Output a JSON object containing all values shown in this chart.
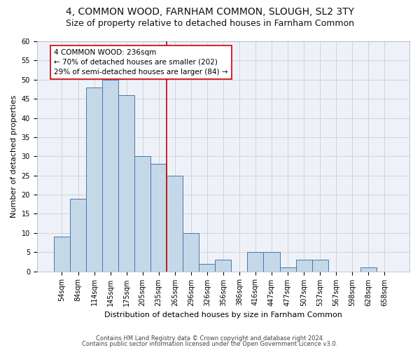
{
  "title": "4, COMMON WOOD, FARNHAM COMMON, SLOUGH, SL2 3TY",
  "subtitle": "Size of property relative to detached houses in Farnham Common",
  "xlabel": "Distribution of detached houses by size in Farnham Common",
  "ylabel": "Number of detached properties",
  "bin_labels": [
    "54sqm",
    "84sqm",
    "114sqm",
    "145sqm",
    "175sqm",
    "205sqm",
    "235sqm",
    "265sqm",
    "296sqm",
    "326sqm",
    "356sqm",
    "386sqm",
    "416sqm",
    "447sqm",
    "477sqm",
    "507sqm",
    "537sqm",
    "567sqm",
    "598sqm",
    "628sqm",
    "658sqm"
  ],
  "bar_values": [
    9,
    19,
    48,
    50,
    46,
    30,
    28,
    25,
    10,
    2,
    3,
    0,
    5,
    5,
    1,
    3,
    3,
    0,
    0,
    1,
    0
  ],
  "bar_color": "#c5d8e8",
  "bar_edge_color": "#4477aa",
  "annotation_text": "4 COMMON WOOD: 236sqm\n← 70% of detached houses are smaller (202)\n29% of semi-detached houses are larger (84) →",
  "annotation_box_color": "#ffffff",
  "annotation_box_edge": "#cc0000",
  "line_color": "#cc0000",
  "ylim": [
    0,
    60
  ],
  "yticks": [
    0,
    5,
    10,
    15,
    20,
    25,
    30,
    35,
    40,
    45,
    50,
    55,
    60
  ],
  "footer1": "Contains HM Land Registry data © Crown copyright and database right 2024.",
  "footer2": "Contains public sector information licensed under the Open Government Licence v3.0.",
  "bg_color": "#ffffff",
  "plot_bg_color": "#eef2f8",
  "grid_color": "#c8ccd8",
  "title_fontsize": 10,
  "subtitle_fontsize": 9,
  "xlabel_fontsize": 8,
  "ylabel_fontsize": 8,
  "tick_fontsize": 7,
  "footer_fontsize": 6,
  "annotation_fontsize": 7.5
}
